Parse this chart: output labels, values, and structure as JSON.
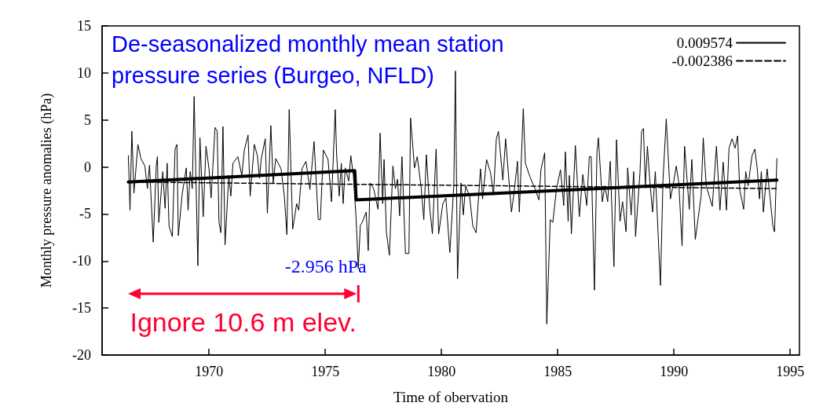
{
  "chart_data": {
    "type": "line",
    "title": "De-seasonalized monthly mean station pressure series (Burgeo, NFLD)",
    "xlabel": "Time of obervation",
    "ylabel": "Monthly pressure anomalies (hPa)",
    "annotations": [
      "-2.956 hPa",
      "Ignore 10.6 m elev."
    ],
    "xlim": [
      1965.4,
      1995.4
    ],
    "xticks": [
      1970,
      1975,
      1980,
      1985,
      1990,
      1995
    ],
    "ylim": [
      -20,
      15
    ],
    "yticks": [
      -20,
      -15,
      -10,
      -5,
      0,
      5,
      10,
      15
    ],
    "grid": false,
    "legend": "top right",
    "marker": "none",
    "series": [
      {
        "color": "#000000",
        "line_style": "solid",
        "x": [
          1966.53,
          1966.6,
          1966.68,
          1966.77,
          1966.94,
          1967.07,
          1967.24,
          1967.35,
          1967.44,
          1967.6,
          1967.73,
          1967.78,
          1967.84,
          1968.01,
          1968.11,
          1968.2,
          1968.28,
          1968.42,
          1968.54,
          1968.62,
          1968.68,
          1968.84,
          1969.02,
          1969.1,
          1969.19,
          1969.28,
          1969.36,
          1969.44,
          1969.52,
          1969.61,
          1969.75,
          1969.87,
          1970.0,
          1970.09,
          1970.26,
          1970.35,
          1970.43,
          1970.51,
          1970.6,
          1970.69,
          1970.85,
          1970.94,
          1971.03,
          1971.24,
          1971.41,
          1971.52,
          1971.68,
          1971.77,
          1971.95,
          1972.08,
          1972.17,
          1972.25,
          1972.42,
          1972.51,
          1972.66,
          1972.76,
          1972.87,
          1973.1,
          1973.24,
          1973.35,
          1973.45,
          1973.6,
          1973.77,
          1973.86,
          1974.0,
          1974.17,
          1974.34,
          1974.52,
          1974.7,
          1974.79,
          1974.92,
          1975.12,
          1975.27,
          1975.43,
          1975.49,
          1975.6,
          1975.69,
          1975.77,
          1975.86,
          1976.01,
          1976.1,
          1976.21,
          1976.33,
          1976.42,
          1976.51,
          1976.59,
          1976.76,
          1976.85,
          1976.93,
          1977.08,
          1977.27,
          1977.36,
          1977.47,
          1977.53,
          1977.63,
          1977.76,
          1977.91,
          1978.02,
          1978.11,
          1978.2,
          1978.3,
          1978.45,
          1978.6,
          1978.67,
          1978.84,
          1978.96,
          1979.13,
          1979.24,
          1979.35,
          1979.5,
          1979.61,
          1979.77,
          1979.88,
          1980.06,
          1980.19,
          1980.36,
          1980.53,
          1980.6,
          1980.69,
          1980.84,
          1980.94,
          1981.04,
          1981.21,
          1981.35,
          1981.49,
          1981.68,
          1981.77,
          1981.94,
          1982.11,
          1982.24,
          1982.36,
          1982.45,
          1982.64,
          1982.76,
          1983.01,
          1983.12,
          1983.27,
          1983.35,
          1983.52,
          1983.61,
          1983.8,
          1984.02,
          1984.19,
          1984.28,
          1984.44,
          1984.53,
          1984.68,
          1984.79,
          1984.95,
          1985.12,
          1985.26,
          1985.33,
          1985.45,
          1985.5,
          1985.59,
          1985.76,
          1985.93,
          1986.08,
          1986.25,
          1986.36,
          1986.44,
          1986.58,
          1986.69,
          1986.75,
          1986.92,
          1987.03,
          1987.15,
          1987.26,
          1987.42,
          1987.53,
          1987.68,
          1987.79,
          1987.94,
          1988.01,
          1988.16,
          1988.27,
          1988.35,
          1988.54,
          1988.61,
          1988.69,
          1988.77,
          1988.86,
          1988.97,
          1989.08,
          1989.2,
          1989.42,
          1989.53,
          1989.67,
          1989.85,
          1989.98,
          1990.1,
          1990.21,
          1990.35,
          1990.46,
          1990.66,
          1990.77,
          1990.92,
          1991.17,
          1991.26,
          1991.39,
          1991.65,
          1991.83,
          1991.98,
          1992.12,
          1992.26,
          1992.37,
          1992.5,
          1992.63,
          1992.74,
          1992.83,
          1993.0,
          1993.09,
          1993.19,
          1993.36,
          1993.48,
          1993.59,
          1993.68,
          1993.76,
          1993.85,
          1994.01,
          1994.13,
          1994.26,
          1994.33,
          1994.43
        ],
        "values": [
          1.2,
          -4.6,
          3.8,
          -2.8,
          2.4,
          0.9,
          0.1,
          -2.3,
          0.2,
          -8.0,
          0.1,
          1.1,
          -5.9,
          -0.5,
          -4.4,
          0.4,
          -6.3,
          -7.4,
          1.9,
          2.4,
          -7.3,
          -3.0,
          -0.1,
          -4.6,
          -0.5,
          -2.3,
          7.5,
          -1.7,
          -10.5,
          3.1,
          -5.3,
          2.2,
          -0.2,
          -3.3,
          4.2,
          3.8,
          -5.9,
          -7.0,
          4.3,
          -8.3,
          -0.9,
          -3.1,
          0.4,
          1.1,
          -0.9,
          1.8,
          3.4,
          -3.1,
          2.4,
          1.2,
          -1.2,
          0.9,
          3.0,
          -4.9,
          4.4,
          -1.7,
          0.9,
          -0.2,
          -3.1,
          -7.2,
          6.1,
          -6.6,
          -3.9,
          -4.6,
          -0.2,
          0.6,
          -2.4,
          2.7,
          -5.6,
          -5.6,
          1.8,
          0.8,
          -3.7,
          6.1,
          1.3,
          -3.1,
          0.4,
          -3.9,
          -0.1,
          -1.5,
          1.2,
          -0.9,
          -5.6,
          -10.8,
          -6.2,
          -5.9,
          -4.8,
          -8.9,
          -1.7,
          -2.3,
          -4.5,
          3.6,
          -3.9,
          0.8,
          -6.9,
          -9.4,
          0.1,
          -2.3,
          -1.3,
          -5.2,
          1.1,
          -9.2,
          -9.2,
          5.2,
          -0.1,
          1.1,
          -2.3,
          -5.6,
          1.3,
          -4.5,
          -7.1,
          1.9,
          -7.1,
          -3.9,
          -3.3,
          -9.1,
          -2.0,
          10.2,
          -11.9,
          -1.7,
          -5.1,
          -2.0,
          -3.1,
          -6.3,
          -7.0,
          -0.2,
          -3.4,
          0.8,
          -0.6,
          -3.0,
          3.0,
          3.8,
          -1.4,
          3.0,
          -4.8,
          -2.8,
          0.6,
          -4.8,
          6.2,
          0.4,
          -1.0,
          -2.3,
          -3.5,
          -0.3,
          1.5,
          -16.7,
          -5.6,
          -5.9,
          -2.3,
          -0.3,
          -4.1,
          1.6,
          -5.8,
          -0.9,
          -7.1,
          2.3,
          -5.3,
          -0.8,
          -4.1,
          1.1,
          1.1,
          -13.1,
          1.6,
          3.1,
          -3.7,
          -2.0,
          -3.7,
          0.6,
          -10.6,
          2.9,
          -5.8,
          -3.7,
          -6.9,
          -0.1,
          -5.1,
          -0.5,
          -7.4,
          -0.6,
          3.8,
          4.1,
          -2.0,
          2.2,
          -1.7,
          -4.8,
          -0.5,
          -12.6,
          -1.4,
          5.1,
          -3.4,
          -1.7,
          0.1,
          -1.7,
          -8.4,
          2.2,
          -4.5,
          0.8,
          -7.7,
          -3.1,
          3.1,
          -2.0,
          -4.2,
          2.2,
          -4.6,
          0.5,
          -4.6,
          2.0,
          3.0,
          2.0,
          3.3,
          -2.4,
          -4.5,
          -0.5,
          -2.0,
          1.2,
          1.9,
          -0.3,
          -3.4,
          -0.5,
          -4.8,
          -0.2,
          -3.1,
          -6.3,
          -6.9,
          0.9
        ]
      },
      {
        "name": "0.009574",
        "color": "#000000",
        "line_style": "solid",
        "x": [
          1966.53,
          1976.27,
          1976.33,
          1994.43
        ],
        "values": [
          -1.6,
          -0.4,
          -3.5,
          -1.4
        ]
      },
      {
        "name": "-0.002386",
        "color": "#000000",
        "line_style": "dashed",
        "x": [
          1966.53,
          1994.43
        ],
        "values": [
          -1.6,
          -2.3
        ]
      }
    ]
  }
}
